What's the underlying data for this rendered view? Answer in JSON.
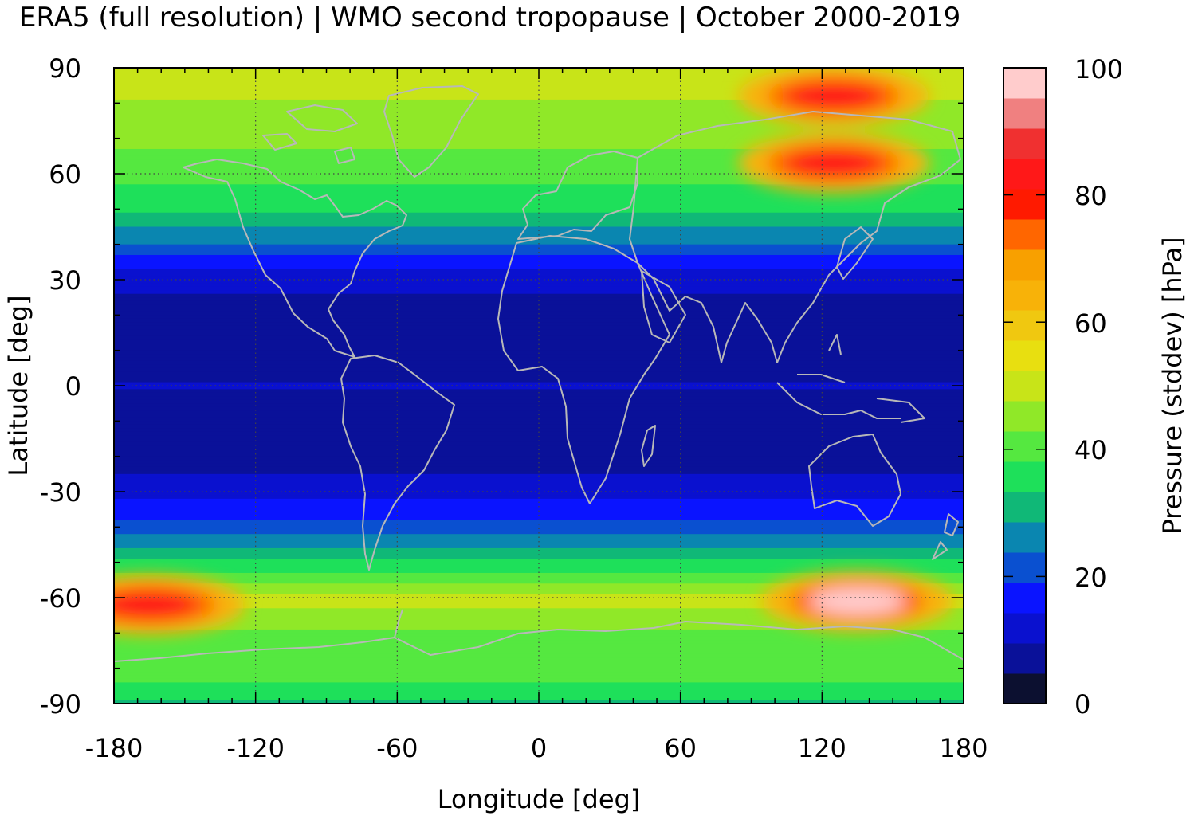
{
  "chart_data": {
    "type": "heatmap",
    "title": "ERA5 (full resolution) | WMO second tropopause | October 2000-2019",
    "xlabel": "Longitude [deg]",
    "ylabel": "Latitude [deg]",
    "xlim": [
      -180,
      180
    ],
    "ylim": [
      -90,
      90
    ],
    "xticks": [
      "-180",
      "-120",
      "-60",
      "0",
      "60",
      "120",
      "180"
    ],
    "yticks": [
      "90",
      "60",
      "30",
      "0",
      "-30",
      "-60",
      "-90"
    ],
    "xtick_values": [
      -180,
      -120,
      -60,
      0,
      60,
      120,
      180
    ],
    "ytick_values": [
      90,
      60,
      30,
      0,
      -30,
      -60,
      -90
    ],
    "grid": true,
    "colorbar": {
      "label": "Pressure (stddev) [hPa]",
      "range": [
        0,
        100
      ],
      "ticks": [
        "0",
        "20",
        "40",
        "60",
        "80",
        "100"
      ],
      "tick_values": [
        0,
        20,
        40,
        60,
        80,
        100
      ],
      "colors": [
        "#0c1030",
        "#0a1199",
        "#0a11cf",
        "#0a14ff",
        "#0a50d0",
        "#0a86b0",
        "#10b877",
        "#1ee05a",
        "#55e840",
        "#90e828",
        "#c8e418",
        "#e8df10",
        "#f0c810",
        "#f8b208",
        "#f8a000",
        "#ff6600",
        "#ff1a00",
        "#ff1818",
        "#f03030",
        "#f08080",
        "#ffcccc"
      ]
    },
    "latitude_profile": {
      "lat": [
        90,
        75,
        60,
        50,
        42,
        35,
        28,
        20,
        10,
        0,
        -10,
        -20,
        -28,
        -35,
        -42,
        -50,
        -55,
        -60,
        -67,
        -75,
        -82,
        -90
      ],
      "stddev_hPa": [
        50,
        46,
        40,
        34,
        26,
        16,
        11,
        6,
        5,
        10,
        6,
        6,
        12,
        16,
        24,
        34,
        42,
        50,
        44,
        38,
        40,
        32
      ]
    },
    "hotspots": [
      {
        "lon": -165,
        "lat": -62,
        "stddev_hPa": 82
      },
      {
        "lon": 135,
        "lat": -61,
        "stddev_hPa": 96
      },
      {
        "lon": 125,
        "lat": 82,
        "stddev_hPa": 82
      },
      {
        "lon": 125,
        "lat": 63,
        "stddev_hPa": 82
      }
    ]
  }
}
